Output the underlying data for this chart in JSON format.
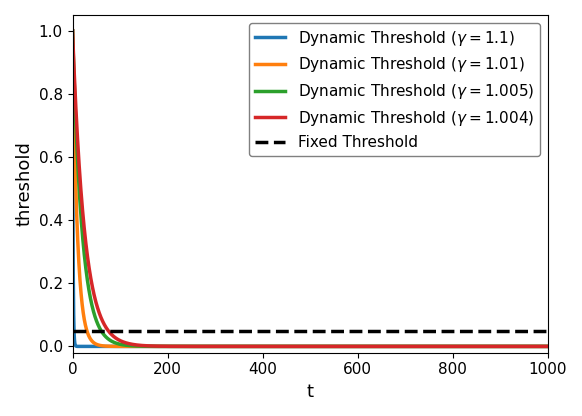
{
  "title": "",
  "xlabel": "t",
  "ylabel": "threshold",
  "xlim": [
    0,
    1000
  ],
  "ylim": [
    -0.02,
    1.05
  ],
  "fixed_threshold": 0.05,
  "gammas": [
    1.1,
    1.01,
    1.005,
    1.004
  ],
  "colors": [
    "#1f77b4",
    "#ff7f0e",
    "#2ca02c",
    "#d62728"
  ],
  "labels": [
    "Dynamic Threshold ($\\gamma = 1.1$)",
    "Dynamic Threshold ($\\gamma = 1.01$)",
    "Dynamic Threshold ($\\gamma = 1.005$)",
    "Dynamic Threshold ($\\gamma = 1.004$)"
  ],
  "fixed_label": "Fixed Threshold",
  "t_max": 1000,
  "t_steps": 10000,
  "t_scale": 10,
  "legend_fontsize": 11,
  "axis_label_fontsize": 13,
  "tick_fontsize": 11,
  "line_width": 2.5
}
